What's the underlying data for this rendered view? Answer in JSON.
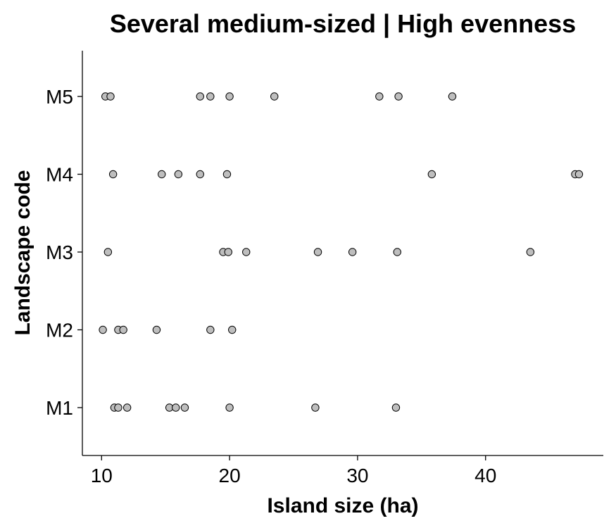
{
  "chart_data": {
    "type": "scatter",
    "title": "Several medium-sized | High evenness",
    "xlabel": "Island size (ha)",
    "ylabel": "Landscape code",
    "xlim": [
      8.5,
      49.2
    ],
    "x_ticks": [
      10,
      20,
      30,
      40
    ],
    "categories": [
      "M1",
      "M2",
      "M3",
      "M4",
      "M5"
    ],
    "grid": false,
    "legend": "none",
    "point_color": "#bebebe",
    "series": [
      {
        "category": "M1",
        "x": [
          11.0,
          11.3,
          12.0,
          15.3,
          15.8,
          16.5,
          20.0,
          26.7,
          33.0
        ]
      },
      {
        "category": "M2",
        "x": [
          10.1,
          11.3,
          11.7,
          14.3,
          18.5,
          20.2
        ]
      },
      {
        "category": "M3",
        "x": [
          10.5,
          19.5,
          19.9,
          21.3,
          26.9,
          29.6,
          33.1,
          43.5
        ]
      },
      {
        "category": "M4",
        "x": [
          10.9,
          14.7,
          16.0,
          17.7,
          19.8,
          35.8,
          47.0,
          47.3
        ]
      },
      {
        "category": "M5",
        "x": [
          10.3,
          10.7,
          17.7,
          18.5,
          20.0,
          23.5,
          31.7,
          33.2,
          37.4
        ]
      }
    ]
  }
}
